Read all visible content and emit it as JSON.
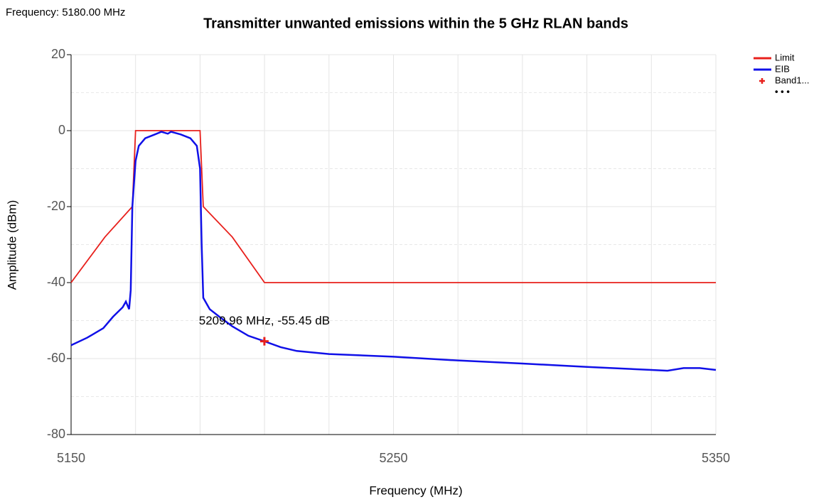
{
  "header": {
    "status": "Frequency: 5180.00 MHz"
  },
  "chart_data": {
    "type": "line",
    "title": "Transmitter unwanted emissions within the 5 GHz RLAN bands",
    "x_label": "Frequency (MHz)",
    "y_label": "Amplitude (dBm)",
    "xlim": [
      5150,
      5350
    ],
    "ylim": [
      -80,
      20
    ],
    "xticks": [
      5150,
      5250,
      5350
    ],
    "yticks": [
      -80,
      -60,
      -40,
      -20,
      0,
      20
    ],
    "x_grid": [
      5170,
      5190,
      5210,
      5230,
      5270,
      5290,
      5310,
      5330
    ],
    "y_grid": [
      -70,
      -50,
      -30,
      -10,
      10
    ],
    "grid": true,
    "legend": "top-right",
    "series": [
      {
        "name": "Limit",
        "color": "#e8201c",
        "x": [
          5150,
          5160.5,
          5169,
          5170,
          5190,
          5191,
          5200,
          5210,
          5350
        ],
        "values": [
          -40,
          -28,
          -20,
          0,
          0,
          -20,
          -28,
          -40,
          -40
        ]
      },
      {
        "name": "EIB",
        "color": "#1010e8",
        "x": [
          5150,
          5155,
          5160,
          5163,
          5166,
          5167,
          5168,
          5168.5,
          5169,
          5170,
          5171,
          5173,
          5176,
          5178,
          5180,
          5181,
          5184,
          5187,
          5189,
          5190,
          5190.5,
          5191,
          5193,
          5196,
          5200,
          5205,
          5210,
          5215,
          5220,
          5230,
          5250,
          5270,
          5290,
          5310,
          5330,
          5335,
          5340,
          5345,
          5350
        ],
        "values": [
          -56.5,
          -54.5,
          -52,
          -49,
          -46.5,
          -45,
          -47,
          -42,
          -20,
          -8,
          -4,
          -2,
          -1,
          -0.3,
          -0.8,
          -0.3,
          -1,
          -2,
          -4,
          -10,
          -30,
          -44,
          -47,
          -49,
          -51.5,
          -54,
          -55.45,
          -57,
          -58,
          -58.8,
          -59.5,
          -60.5,
          -61.3,
          -62.2,
          -63,
          -63.2,
          -62.5,
          -62.5,
          -63
        ]
      }
    ],
    "markers": [
      {
        "name": "Band1...",
        "color": "#e8201c",
        "x": 5209.96,
        "y": -55.45,
        "label": "5209.96 MHz, -55.45 dB"
      }
    ],
    "legend_more": "• • •"
  }
}
